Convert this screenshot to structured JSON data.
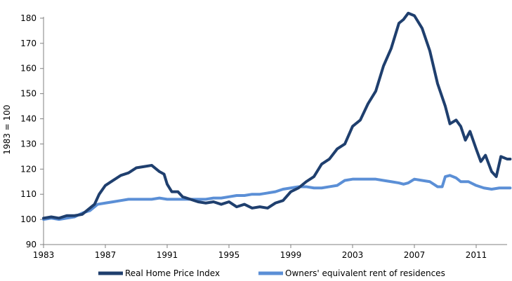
{
  "chart_data": {
    "type": "line",
    "title": "",
    "xlabel": "",
    "ylabel": "1983 = 100",
    "xlim": [
      1983,
      2013
    ],
    "ylim": [
      90,
      185
    ],
    "x_ticks": [
      "1983",
      "1987",
      "1991",
      "1995",
      "1999",
      "2003",
      "2007",
      "2011"
    ],
    "y_ticks": [
      "90",
      "100",
      "110",
      "120",
      "130",
      "140",
      "150",
      "160",
      "170",
      "180"
    ],
    "grid": false,
    "legend_position": "bottom",
    "series": [
      {
        "name": "Real Home Price Index",
        "color": "#1f3f6e",
        "points": [
          [
            1983.0,
            100.5
          ],
          [
            1983.5,
            101.0
          ],
          [
            1984.0,
            100.5
          ],
          [
            1984.5,
            101.5
          ],
          [
            1985.0,
            101.5
          ],
          [
            1985.5,
            102.0
          ],
          [
            1986.0,
            104.5
          ],
          [
            1986.3,
            106.0
          ],
          [
            1986.6,
            110.0
          ],
          [
            1987.0,
            113.5
          ],
          [
            1987.5,
            115.5
          ],
          [
            1988.0,
            117.5
          ],
          [
            1988.5,
            118.5
          ],
          [
            1989.0,
            120.5
          ],
          [
            1989.5,
            121.0
          ],
          [
            1990.0,
            121.5
          ],
          [
            1990.5,
            119.0
          ],
          [
            1990.8,
            118.0
          ],
          [
            1991.0,
            114.0
          ],
          [
            1991.3,
            111.0
          ],
          [
            1991.7,
            111.0
          ],
          [
            1992.0,
            109.0
          ],
          [
            1992.5,
            108.0
          ],
          [
            1993.0,
            107.0
          ],
          [
            1993.5,
            106.5
          ],
          [
            1994.0,
            107.0
          ],
          [
            1994.5,
            106.0
          ],
          [
            1995.0,
            107.0
          ],
          [
            1995.5,
            105.0
          ],
          [
            1996.0,
            106.0
          ],
          [
            1996.5,
            104.5
          ],
          [
            1997.0,
            105.0
          ],
          [
            1997.5,
            104.5
          ],
          [
            1998.0,
            106.5
          ],
          [
            1998.5,
            107.5
          ],
          [
            1999.0,
            111.0
          ],
          [
            1999.5,
            112.5
          ],
          [
            2000.0,
            115.0
          ],
          [
            2000.5,
            117.0
          ],
          [
            2001.0,
            122.0
          ],
          [
            2001.5,
            124.0
          ],
          [
            2002.0,
            128.0
          ],
          [
            2002.5,
            130.0
          ],
          [
            2003.0,
            137.0
          ],
          [
            2003.5,
            139.5
          ],
          [
            2004.0,
            146.0
          ],
          [
            2004.5,
            151.0
          ],
          [
            2005.0,
            161.0
          ],
          [
            2005.5,
            168.0
          ],
          [
            2006.0,
            178.0
          ],
          [
            2006.3,
            179.5
          ],
          [
            2006.6,
            182.0
          ],
          [
            2007.0,
            181.0
          ],
          [
            2007.5,
            176.0
          ],
          [
            2008.0,
            167.0
          ],
          [
            2008.5,
            154.0
          ],
          [
            2009.0,
            145.0
          ],
          [
            2009.3,
            138.0
          ],
          [
            2009.7,
            139.5
          ],
          [
            2010.0,
            137.0
          ],
          [
            2010.3,
            131.5
          ],
          [
            2010.6,
            135.0
          ],
          [
            2011.0,
            128.0
          ],
          [
            2011.3,
            123.0
          ],
          [
            2011.6,
            125.5
          ],
          [
            2012.0,
            119.0
          ],
          [
            2012.3,
            117.0
          ],
          [
            2012.6,
            125.0
          ],
          [
            2013.0,
            124.0
          ],
          [
            2013.2,
            124.0
          ]
        ]
      },
      {
        "name": "Owners' equivalent rent of residences",
        "color": "#5b8fd6",
        "points": [
          [
            1983.0,
            100.0
          ],
          [
            1983.5,
            100.5
          ],
          [
            1984.0,
            100.0
          ],
          [
            1984.5,
            100.5
          ],
          [
            1985.0,
            101.0
          ],
          [
            1985.5,
            102.5
          ],
          [
            1986.0,
            103.5
          ],
          [
            1986.5,
            106.0
          ],
          [
            1987.0,
            106.5
          ],
          [
            1987.5,
            107.0
          ],
          [
            1988.0,
            107.5
          ],
          [
            1988.5,
            108.0
          ],
          [
            1989.0,
            108.0
          ],
          [
            1989.5,
            108.0
          ],
          [
            1990.0,
            108.0
          ],
          [
            1990.5,
            108.5
          ],
          [
            1991.0,
            108.0
          ],
          [
            1991.5,
            108.0
          ],
          [
            1992.0,
            108.0
          ],
          [
            1992.5,
            108.0
          ],
          [
            1993.0,
            108.0
          ],
          [
            1993.5,
            108.0
          ],
          [
            1994.0,
            108.5
          ],
          [
            1994.5,
            108.5
          ],
          [
            1995.0,
            109.0
          ],
          [
            1995.5,
            109.5
          ],
          [
            1996.0,
            109.5
          ],
          [
            1996.5,
            110.0
          ],
          [
            1997.0,
            110.0
          ],
          [
            1997.5,
            110.5
          ],
          [
            1998.0,
            111.0
          ],
          [
            1998.5,
            112.0
          ],
          [
            1999.0,
            112.5
          ],
          [
            1999.5,
            113.0
          ],
          [
            2000.0,
            113.0
          ],
          [
            2000.5,
            112.5
          ],
          [
            2001.0,
            112.5
          ],
          [
            2001.5,
            113.0
          ],
          [
            2002.0,
            113.5
          ],
          [
            2002.5,
            115.5
          ],
          [
            2003.0,
            116.0
          ],
          [
            2003.5,
            116.0
          ],
          [
            2004.0,
            116.0
          ],
          [
            2004.5,
            116.0
          ],
          [
            2005.0,
            115.5
          ],
          [
            2005.5,
            115.0
          ],
          [
            2006.0,
            114.5
          ],
          [
            2006.3,
            114.0
          ],
          [
            2006.6,
            114.5
          ],
          [
            2007.0,
            116.0
          ],
          [
            2007.5,
            115.5
          ],
          [
            2008.0,
            115.0
          ],
          [
            2008.5,
            113.0
          ],
          [
            2008.8,
            113.0
          ],
          [
            2009.0,
            117.0
          ],
          [
            2009.3,
            117.5
          ],
          [
            2009.7,
            116.5
          ],
          [
            2010.0,
            115.0
          ],
          [
            2010.5,
            115.0
          ],
          [
            2011.0,
            113.5
          ],
          [
            2011.5,
            112.5
          ],
          [
            2012.0,
            112.0
          ],
          [
            2012.5,
            112.5
          ],
          [
            2013.0,
            112.5
          ],
          [
            2013.2,
            112.5
          ]
        ]
      }
    ]
  }
}
